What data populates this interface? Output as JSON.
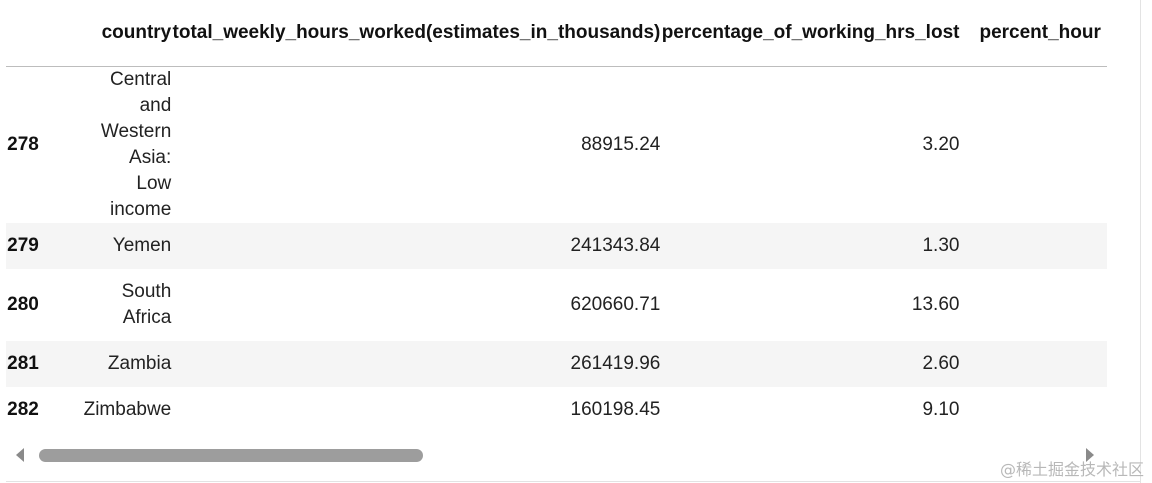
{
  "table": {
    "columns": [
      "",
      "country",
      "total_weekly_hours_worked(estimates_in_thousands)",
      "percentage_of_working_hrs_lost",
      "percent_hour"
    ],
    "rows": [
      {
        "index": "278",
        "country": "Central and Western Asia: Low income",
        "total_weekly_hours_worked": "88915.24",
        "percentage_of_working_hrs_lost": "3.20"
      },
      {
        "index": "279",
        "country": "Yemen",
        "total_weekly_hours_worked": "241343.84",
        "percentage_of_working_hrs_lost": "1.30"
      },
      {
        "index": "280",
        "country": "South Africa",
        "total_weekly_hours_worked": "620660.71",
        "percentage_of_working_hrs_lost": "13.60"
      },
      {
        "index": "281",
        "country": "Zambia",
        "total_weekly_hours_worked": "261419.96",
        "percentage_of_working_hrs_lost": "2.60"
      },
      {
        "index": "282",
        "country": "Zimbabwe",
        "total_weekly_hours_worked": "160198.45",
        "percentage_of_working_hrs_lost": "9.10"
      }
    ]
  },
  "watermark": "@稀土掘金技术社区",
  "colors": {
    "stripe": "#f5f5f5",
    "scroll_thumb": "#9d9d9d",
    "header_rule": "#bdbdbd"
  },
  "icons": {
    "scroll_left": "caret-left-icon",
    "scroll_right": "caret-right-icon"
  }
}
